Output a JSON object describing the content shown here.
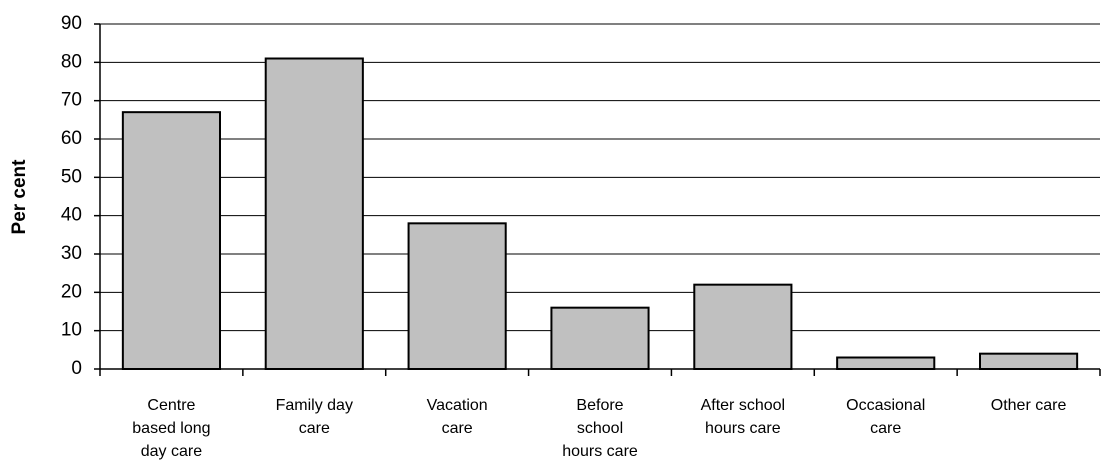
{
  "chart_data": {
    "type": "bar",
    "y_label": "Per cent",
    "categories": [
      "Centre based long day care",
      "Family day care",
      "Vacation care",
      "Before school hours care",
      "After school hours care",
      "Occasional care",
      "Other care"
    ],
    "values": [
      67,
      81,
      38,
      16,
      22,
      3,
      4
    ],
    "color": "#c0c0c0",
    "ylim": [
      0,
      90
    ],
    "yticks": [
      0,
      10,
      20,
      30,
      40,
      50,
      60,
      70,
      80,
      90
    ],
    "grid": true
  }
}
